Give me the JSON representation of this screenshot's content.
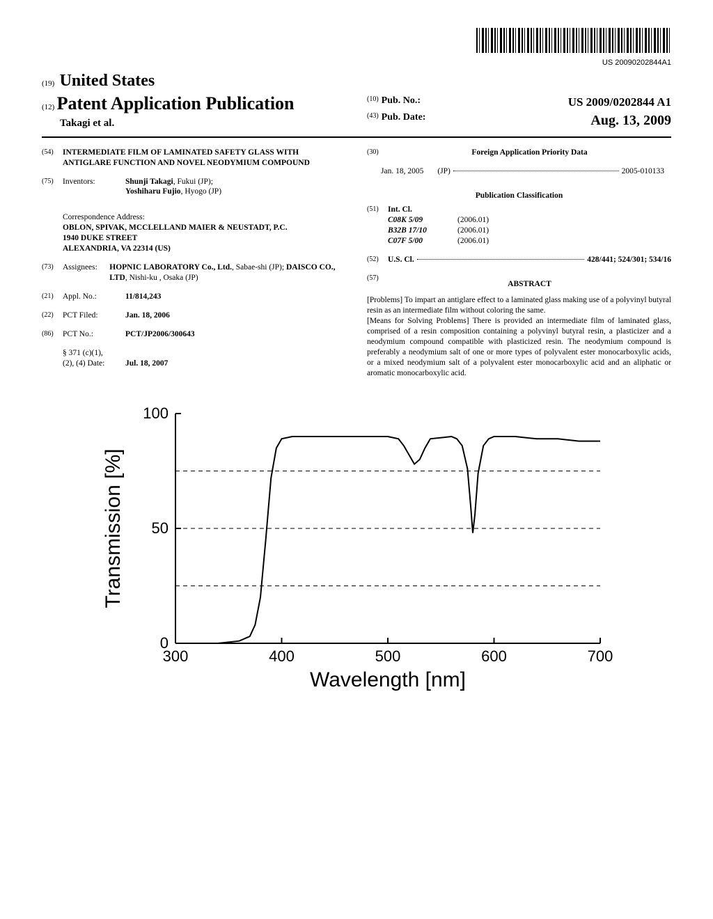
{
  "barcode": {
    "text": "US 20090202844A1"
  },
  "header": {
    "country_num": "(19)",
    "country": "United States",
    "pub_type_num": "(12)",
    "pub_type": "Patent Application Publication",
    "authors": "Takagi et al.",
    "pub_no_num": "(10)",
    "pub_no_lbl": "Pub. No.:",
    "pub_no_val": "US 2009/0202844 A1",
    "pub_date_num": "(43)",
    "pub_date_lbl": "Pub. Date:",
    "pub_date_val": "Aug. 13, 2009"
  },
  "left": {
    "s54_num": "(54)",
    "s54_title": "INTERMEDIATE FILM OF LAMINATED SAFETY GLASS WITH ANTIGLARE FUNCTION AND NOVEL NEODYMIUM COMPOUND",
    "s75_num": "(75)",
    "s75_lbl": "Inventors:",
    "s75_val_1": "Shunji Takagi",
    "s75_val_1_loc": ", Fukui (JP);",
    "s75_val_2": "Yoshiharu Fujio",
    "s75_val_2_loc": ", Hyogo (JP)",
    "corr_lbl": "Correspondence Address:",
    "corr_firm": "OBLON, SPIVAK, MCCLELLAND MAIER & NEUSTADT, P.C.",
    "corr_street": "1940 DUKE STREET",
    "corr_city": "ALEXANDRIA, VA 22314 (US)",
    "s73_num": "(73)",
    "s73_lbl": "Assignees:",
    "s73_val_1": "HOPNIC LABORATORY Co., Ltd.",
    "s73_val_1_loc": ", Sabae-shi (JP); ",
    "s73_val_2": "DAISCO CO., LTD",
    "s73_val_2_loc": ", Nishi-ku , Osaka (JP)",
    "s21_num": "(21)",
    "s21_lbl": "Appl. No.:",
    "s21_val": "11/814,243",
    "s22_num": "(22)",
    "s22_lbl": "PCT Filed:",
    "s22_val": "Jan. 18, 2006",
    "s86_num": "(86)",
    "s86_lbl": "PCT No.:",
    "s86_val": "PCT/JP2006/300643",
    "s371_lbl1": "§ 371 (c)(1),",
    "s371_lbl2": "(2), (4) Date:",
    "s371_val": "Jul. 18, 2007"
  },
  "right": {
    "s30_num": "(30)",
    "s30_title": "Foreign Application Priority Data",
    "s30_date": "Jan. 18, 2005",
    "s30_country": "(JP)",
    "s30_app": "2005-010133",
    "pub_class_title": "Publication Classification",
    "s51_num": "(51)",
    "s51_lbl": "Int. Cl.",
    "int_cl": [
      {
        "code": "C08K 5/09",
        "year": "(2006.01)"
      },
      {
        "code": "B32B 17/10",
        "year": "(2006.01)"
      },
      {
        "code": "C07F 5/00",
        "year": "(2006.01)"
      }
    ],
    "s52_num": "(52)",
    "s52_lbl": "U.S. Cl.",
    "s52_val": "428/441; 524/301; 534/16",
    "s57_num": "(57)",
    "abstract_title": "ABSTRACT",
    "abstract_p1": "[Problems] To impart an antiglare effect to a laminated glass making use of a polyvinyl butyral resin as an intermediate film without coloring the same.",
    "abstract_p2": "[Means for Solving Problems] There is provided an intermediate film of laminated glass, comprised of a resin composition containing a polyvinyl butyral resin, a plasticizer and a neodymium compound compatible with plasticized resin. The neodymium compound is preferably a neodymium salt of one or more types of polyvalent ester monocarboxylic acids, or a mixed neodymium salt of a polyvalent ester monocarboxylic acid and an aliphatic or aromatic monocarboxylic acid."
  },
  "chart": {
    "type": "line",
    "xlabel": "Wavelength [nm]",
    "ylabel": "Transmission [%]",
    "xlim": [
      300,
      700
    ],
    "ylim": [
      0,
      100
    ],
    "xticks": [
      300,
      400,
      500,
      600,
      700
    ],
    "yticks": [
      0,
      50,
      100
    ],
    "y_gridlines": [
      25,
      50,
      75
    ],
    "background_color": "#ffffff",
    "axis_color": "#000000",
    "grid_style": "dashed",
    "grid_color": "#000000",
    "line_color": "#000000",
    "line_width": 2,
    "label_fontsize": 30,
    "tick_fontsize": 22,
    "data": {
      "x": [
        300,
        340,
        360,
        370,
        375,
        380,
        385,
        390,
        395,
        400,
        410,
        420,
        440,
        460,
        480,
        500,
        510,
        515,
        520,
        525,
        530,
        535,
        540,
        560,
        565,
        570,
        575,
        578,
        580,
        582,
        585,
        590,
        595,
        600,
        620,
        640,
        660,
        680,
        700
      ],
      "y": [
        0,
        0,
        1,
        3,
        8,
        20,
        45,
        72,
        85,
        89,
        90,
        90,
        90,
        90,
        90,
        90,
        89,
        86,
        82,
        78,
        80,
        85,
        89,
        90,
        89,
        86,
        76,
        60,
        48,
        56,
        74,
        86,
        89,
        90,
        90,
        89,
        89,
        88,
        88
      ]
    }
  }
}
